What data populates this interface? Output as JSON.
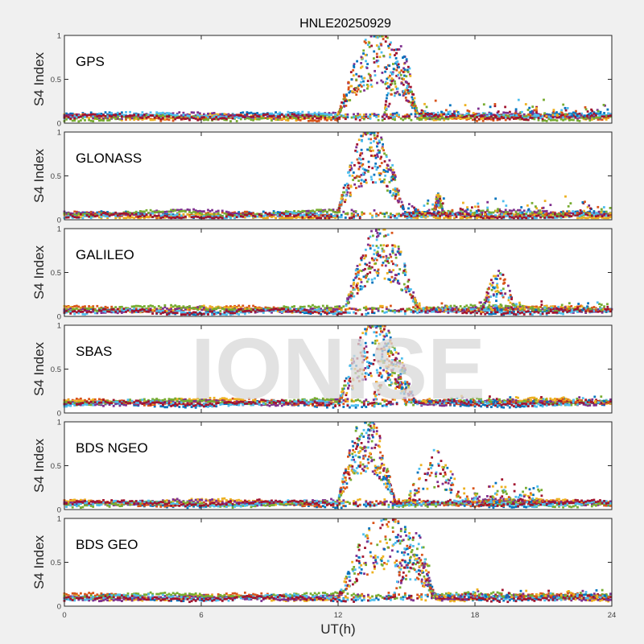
{
  "chart_data": {
    "type": "scatter",
    "title": "HNLE20250929",
    "xlabel": "UT(h)",
    "ylabel": "S4 Index",
    "xlim": [
      0,
      24
    ],
    "ylim": [
      0,
      1
    ],
    "xticks": [
      0,
      6,
      12,
      18,
      24
    ],
    "yticks": [
      0,
      0.5,
      1
    ],
    "ytick_labels": [
      "0",
      "0.5",
      "1"
    ],
    "grid": false,
    "watermark": "IONISE",
    "series_colors": [
      "#0072BD",
      "#D95319",
      "#EDB120",
      "#7E2F8E",
      "#77AC30",
      "#4DBEEE",
      "#A2142F"
    ],
    "panels": [
      {
        "label": "GPS",
        "baseline_s4": 0.08,
        "quiet_max_s4": 0.25,
        "disturbed_window_h": [
          12.0,
          15.5
        ],
        "disturbed_peak_s4": 1.0,
        "secondary_burst": {
          "window_h": [
            14.0,
            15.5
          ],
          "peak_s4": 0.85
        },
        "late_activity": {
          "window_h": [
            15.5,
            24.0
          ],
          "peak_s4": 0.3
        }
      },
      {
        "label": "GLONASS",
        "baseline_s4": 0.06,
        "quiet_max_s4": 0.2,
        "disturbed_window_h": [
          12.0,
          14.9
        ],
        "disturbed_peak_s4": 1.0,
        "secondary_burst": {
          "window_h": [
            16.2,
            16.6
          ],
          "peak_s4": 0.3
        },
        "late_activity": {
          "window_h": [
            15.0,
            24.0
          ],
          "peak_s4": 0.3
        }
      },
      {
        "label": "GALILEO",
        "baseline_s4": 0.07,
        "quiet_max_s4": 0.2,
        "disturbed_window_h": [
          12.3,
          15.5
        ],
        "disturbed_peak_s4": 0.97,
        "secondary_burst": {
          "window_h": [
            18.3,
            19.8
          ],
          "peak_s4": 0.5
        },
        "late_activity": {
          "window_h": [
            15.5,
            24.0
          ],
          "peak_s4": 0.2
        }
      },
      {
        "label": "SBAS",
        "baseline_s4": 0.12,
        "quiet_max_s4": 0.2,
        "disturbed_window_h": [
          12.0,
          15.4
        ],
        "disturbed_peak_s4": 1.0,
        "secondary_burst": {
          "window_h": [
            13.5,
            15.0
          ],
          "peak_s4": 0.8
        },
        "late_activity": {
          "window_h": [
            15.4,
            24.0
          ],
          "peak_s4": 0.2
        }
      },
      {
        "label": "BDS NGEO",
        "baseline_s4": 0.08,
        "quiet_max_s4": 0.15,
        "disturbed_window_h": [
          12.0,
          14.5
        ],
        "disturbed_peak_s4": 1.0,
        "secondary_burst": {
          "window_h": [
            15.0,
            17.5
          ],
          "peak_s4": 0.65
        },
        "late_activity": {
          "window_h": [
            17.5,
            21.0
          ],
          "peak_s4": 0.35
        }
      },
      {
        "label": "BDS GEO",
        "baseline_s4": 0.1,
        "quiet_max_s4": 0.17,
        "disturbed_window_h": [
          12.0,
          16.3
        ],
        "disturbed_peak_s4": 1.0,
        "secondary_burst": {
          "window_h": [
            14.4,
            16.3
          ],
          "peak_s4": 0.85
        },
        "late_activity": {
          "window_h": [
            16.3,
            24.0
          ],
          "peak_s4": 0.2
        }
      }
    ]
  }
}
